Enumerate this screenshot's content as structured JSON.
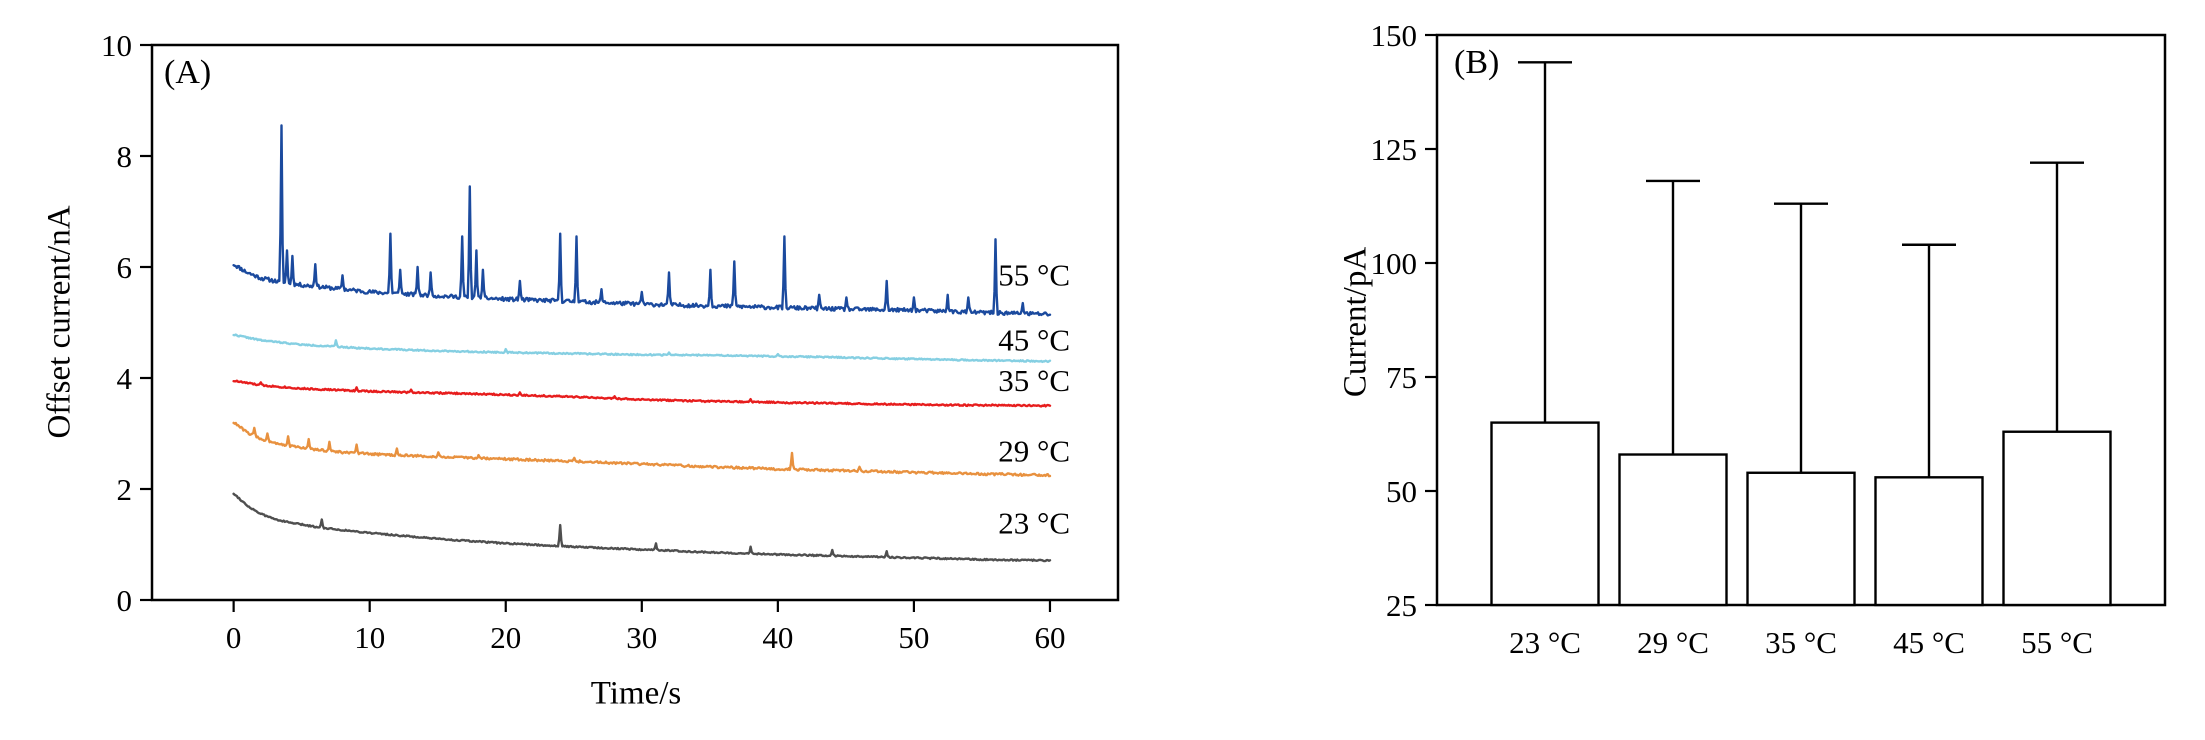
{
  "figure": {
    "background": "#ffffff"
  },
  "chart_data": [
    {
      "id": "panel_a",
      "type": "line",
      "panel_label": "(A)",
      "xlabel": "Time/s",
      "ylabel": "Offset current/nA",
      "xlim": [
        -6,
        65
      ],
      "ylim": [
        0,
        10
      ],
      "xticks": [
        0,
        10,
        20,
        30,
        40,
        50,
        60
      ],
      "yticks": [
        0,
        2,
        4,
        6,
        8,
        10
      ],
      "grid": false,
      "axis_color": "#000000",
      "series": [
        {
          "name": "55 °C",
          "color": "#1b4a9e",
          "noise": 0.035,
          "seed": 11,
          "base": [
            [
              0,
              6.05
            ],
            [
              1,
              5.9
            ],
            [
              2,
              5.8
            ],
            [
              4,
              5.7
            ],
            [
              6,
              5.65
            ],
            [
              10,
              5.55
            ],
            [
              15,
              5.48
            ],
            [
              20,
              5.42
            ],
            [
              25,
              5.38
            ],
            [
              30,
              5.33
            ],
            [
              35,
              5.3
            ],
            [
              40,
              5.27
            ],
            [
              45,
              5.24
            ],
            [
              50,
              5.22
            ],
            [
              55,
              5.18
            ],
            [
              60,
              5.15
            ]
          ],
          "spikes": [
            [
              3.5,
              8.55
            ],
            [
              3.9,
              6.3
            ],
            [
              4.3,
              6.2
            ],
            [
              6,
              6.05
            ],
            [
              8,
              5.85
            ],
            [
              11.5,
              6.6
            ],
            [
              12.2,
              5.95
            ],
            [
              13.5,
              6.0
            ],
            [
              14.5,
              5.9
            ],
            [
              16.8,
              6.55
            ],
            [
              17.4,
              7.45
            ],
            [
              17.8,
              6.3
            ],
            [
              18.3,
              5.95
            ],
            [
              21,
              5.75
            ],
            [
              24,
              6.6
            ],
            [
              25.2,
              6.55
            ],
            [
              27,
              5.6
            ],
            [
              30,
              5.55
            ],
            [
              32,
              5.9
            ],
            [
              35,
              5.95
            ],
            [
              36.8,
              6.1
            ],
            [
              40.5,
              6.55
            ],
            [
              43,
              5.5
            ],
            [
              45,
              5.45
            ],
            [
              48,
              5.75
            ],
            [
              50,
              5.45
            ],
            [
              52.5,
              5.5
            ],
            [
              54,
              5.45
            ],
            [
              56,
              6.5
            ],
            [
              58,
              5.35
            ]
          ]
        },
        {
          "name": "45 °C",
          "color": "#85cfe2",
          "noise": 0.012,
          "seed": 22,
          "base": [
            [
              0,
              4.78
            ],
            [
              2,
              4.68
            ],
            [
              5,
              4.6
            ],
            [
              10,
              4.53
            ],
            [
              15,
              4.49
            ],
            [
              20,
              4.46
            ],
            [
              25,
              4.44
            ],
            [
              30,
              4.42
            ],
            [
              35,
              4.41
            ],
            [
              40,
              4.39
            ],
            [
              45,
              4.37
            ],
            [
              50,
              4.34
            ],
            [
              55,
              4.32
            ],
            [
              60,
              4.3
            ]
          ],
          "spikes": [
            [
              7.5,
              4.68
            ],
            [
              20,
              4.52
            ],
            [
              32,
              4.46
            ],
            [
              40,
              4.43
            ]
          ]
        },
        {
          "name": "35 °C",
          "color": "#e71d1d",
          "noise": 0.014,
          "seed": 33,
          "base": [
            [
              0,
              3.95
            ],
            [
              2,
              3.87
            ],
            [
              5,
              3.81
            ],
            [
              10,
              3.76
            ],
            [
              15,
              3.73
            ],
            [
              20,
              3.7
            ],
            [
              25,
              3.66
            ],
            [
              30,
              3.61
            ],
            [
              35,
              3.58
            ],
            [
              40,
              3.56
            ],
            [
              45,
              3.54
            ],
            [
              50,
              3.52
            ],
            [
              55,
              3.51
            ],
            [
              60,
              3.5
            ]
          ],
          "spikes": [
            [
              2,
              3.92
            ],
            [
              9,
              3.83
            ],
            [
              13,
              3.79
            ],
            [
              21,
              3.74
            ],
            [
              28,
              3.67
            ],
            [
              38,
              3.62
            ]
          ]
        },
        {
          "name": "29 °C",
          "color": "#e8913f",
          "noise": 0.02,
          "seed": 44,
          "base": [
            [
              0,
              3.2
            ],
            [
              1,
              3.02
            ],
            [
              2,
              2.9
            ],
            [
              4,
              2.78
            ],
            [
              6,
              2.71
            ],
            [
              8,
              2.66
            ],
            [
              10,
              2.63
            ],
            [
              15,
              2.58
            ],
            [
              20,
              2.54
            ],
            [
              25,
              2.5
            ],
            [
              30,
              2.45
            ],
            [
              35,
              2.4
            ],
            [
              40,
              2.36
            ],
            [
              45,
              2.33
            ],
            [
              50,
              2.3
            ],
            [
              55,
              2.27
            ],
            [
              60,
              2.25
            ]
          ],
          "spikes": [
            [
              1.5,
              3.1
            ],
            [
              2.5,
              3.0
            ],
            [
              4,
              2.95
            ],
            [
              5.5,
              2.9
            ],
            [
              7,
              2.85
            ],
            [
              9,
              2.8
            ],
            [
              12,
              2.73
            ],
            [
              15,
              2.66
            ],
            [
              18,
              2.61
            ],
            [
              25,
              2.56
            ],
            [
              41,
              2.65
            ],
            [
              46,
              2.4
            ]
          ]
        },
        {
          "name": "23 °C",
          "color": "#4f4f4f",
          "noise": 0.013,
          "seed": 55,
          "base": [
            [
              0,
              1.92
            ],
            [
              1,
              1.7
            ],
            [
              2,
              1.55
            ],
            [
              3,
              1.46
            ],
            [
              4,
              1.4
            ],
            [
              6,
              1.32
            ],
            [
              8,
              1.26
            ],
            [
              10,
              1.21
            ],
            [
              15,
              1.1
            ],
            [
              20,
              1.02
            ],
            [
              25,
              0.96
            ],
            [
              30,
              0.91
            ],
            [
              35,
              0.86
            ],
            [
              40,
              0.82
            ],
            [
              45,
              0.79
            ],
            [
              50,
              0.76
            ],
            [
              55,
              0.73
            ],
            [
              60,
              0.71
            ]
          ],
          "spikes": [
            [
              6.5,
              1.45
            ],
            [
              24,
              1.35
            ],
            [
              31,
              1.02
            ],
            [
              38,
              0.96
            ],
            [
              44,
              0.9
            ],
            [
              48,
              0.88
            ]
          ]
        }
      ],
      "annotations": [
        {
          "text": "55 °C",
          "x": 56.2,
          "y": 5.85
        },
        {
          "text": "45 °C",
          "x": 56.2,
          "y": 4.68
        },
        {
          "text": "35 °C",
          "x": 56.2,
          "y": 3.95
        },
        {
          "text": "29 °C",
          "x": 56.2,
          "y": 2.68
        },
        {
          "text": "23 °C",
          "x": 56.2,
          "y": 1.38
        }
      ]
    },
    {
      "id": "panel_b",
      "type": "bar",
      "panel_label": "(B)",
      "xlabel": "",
      "ylabel": "Current/pA",
      "categories": [
        "23 °C",
        "29 °C",
        "35 °C",
        "45 °C",
        "55 °C"
      ],
      "values": [
        65,
        58,
        54,
        53,
        63
      ],
      "error_upper": [
        144,
        118,
        113,
        104,
        122
      ],
      "ylim": [
        25,
        150
      ],
      "yticks": [
        25,
        50,
        75,
        100,
        125,
        150
      ],
      "grid": false,
      "bar_fill": "#ffffff",
      "bar_stroke": "#000000",
      "axis_color": "#000000"
    }
  ]
}
